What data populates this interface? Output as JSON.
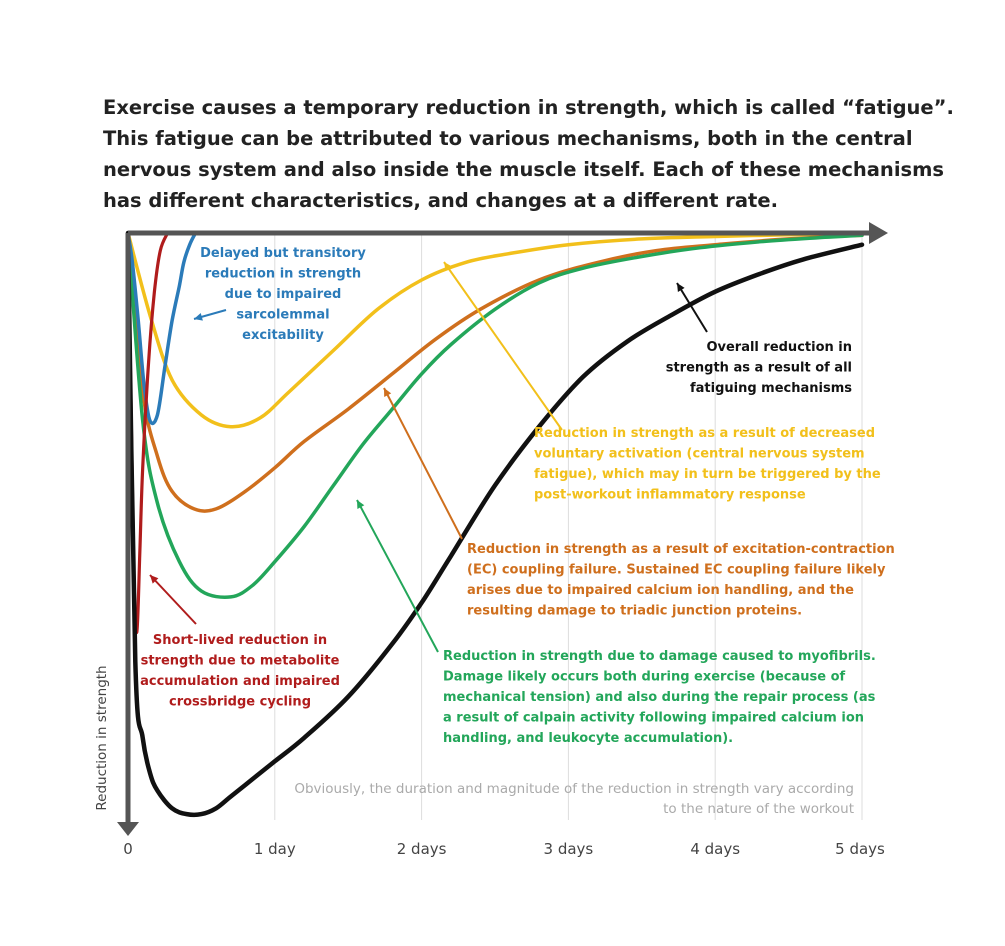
{
  "heading": {
    "lines": [
      "Exercise causes a temporary reduction in strength, which is called “fatigue”.",
      "This fatigue can be attributed to various mechanisms, both in the central",
      "nervous system and also inside the muscle itself. Each of these mechanisms",
      "has different characteristics, and changes at a different rate."
    ]
  },
  "chart_data": {
    "type": "line",
    "title": "",
    "xlabel": "",
    "ylabel": "Reduction in strength",
    "x_unit": "days",
    "xlim": [
      0,
      5
    ],
    "ylim": [
      0,
      1
    ],
    "y_axis_inverted": true,
    "grid": "vertical",
    "tick_labels": [
      "0",
      "1 day",
      "2 days",
      "3 days",
      "4 days",
      "5 days"
    ],
    "series": [
      {
        "key": "metabolite",
        "color": "#b01c1c",
        "x": [
          0,
          0.02,
          0.04,
          0.06,
          0.08,
          0.1,
          0.14,
          0.18,
          0.22,
          0.27
        ],
        "y": [
          0,
          0.28,
          0.58,
          0.68,
          0.55,
          0.4,
          0.22,
          0.1,
          0.03,
          0
        ]
      },
      {
        "key": "sarcolemmal",
        "color": "#2b7bb9",
        "x": [
          0,
          0.03,
          0.07,
          0.11,
          0.15,
          0.2,
          0.25,
          0.3,
          0.35,
          0.38,
          0.42,
          0.46
        ],
        "y": [
          0,
          0.05,
          0.15,
          0.26,
          0.32,
          0.31,
          0.23,
          0.15,
          0.09,
          0.05,
          0.02,
          0
        ]
      },
      {
        "key": "central",
        "color": "#f2c01b",
        "x": [
          0,
          0.15,
          0.3,
          0.5,
          0.7,
          0.9,
          1.1,
          1.4,
          1.7,
          2.0,
          2.3,
          2.6,
          3.0,
          3.5,
          4.0,
          4.5,
          5.0
        ],
        "y": [
          0,
          0.14,
          0.25,
          0.31,
          0.33,
          0.315,
          0.27,
          0.2,
          0.13,
          0.08,
          0.05,
          0.035,
          0.02,
          0.01,
          0.006,
          0.003,
          0.001
        ]
      },
      {
        "key": "ec-coupling",
        "color": "#cf6f1d",
        "x": [
          0,
          0.1,
          0.2,
          0.3,
          0.45,
          0.6,
          0.8,
          1.0,
          1.2,
          1.5,
          1.8,
          2.1,
          2.4,
          2.8,
          3.2,
          3.6,
          4.0,
          4.5,
          5.0
        ],
        "y": [
          0,
          0.27,
          0.38,
          0.44,
          0.47,
          0.47,
          0.44,
          0.4,
          0.355,
          0.3,
          0.24,
          0.18,
          0.13,
          0.08,
          0.05,
          0.03,
          0.02,
          0.01,
          0.004
        ]
      },
      {
        "key": "myofibril",
        "color": "#23a65a",
        "x": [
          0,
          0.1,
          0.2,
          0.35,
          0.5,
          0.7,
          0.85,
          1.0,
          1.2,
          1.4,
          1.6,
          1.8,
          2.0,
          2.2,
          2.5,
          2.8,
          3.1,
          3.5,
          3.9,
          4.3,
          4.7,
          5.0
        ],
        "y": [
          0,
          0.32,
          0.46,
          0.56,
          0.61,
          0.62,
          0.6,
          0.56,
          0.5,
          0.43,
          0.36,
          0.3,
          0.24,
          0.19,
          0.13,
          0.085,
          0.06,
          0.04,
          0.025,
          0.015,
          0.008,
          0.004
        ]
      },
      {
        "key": "overall",
        "color": "#111111",
        "x": [
          0,
          0.05,
          0.1,
          0.15,
          0.2,
          0.3,
          0.4,
          0.5,
          0.6,
          0.7,
          0.85,
          1.0,
          1.2,
          1.5,
          1.8,
          2.0,
          2.2,
          2.5,
          2.8,
          3.1,
          3.4,
          3.7,
          4.0,
          4.3,
          4.6,
          5.0
        ],
        "y": [
          0,
          0.73,
          0.86,
          0.92,
          0.95,
          0.98,
          0.99,
          0.99,
          0.98,
          0.96,
          0.93,
          0.9,
          0.86,
          0.79,
          0.7,
          0.63,
          0.55,
          0.43,
          0.33,
          0.245,
          0.185,
          0.14,
          0.1,
          0.07,
          0.045,
          0.02
        ]
      }
    ],
    "annotations": [
      {
        "key": "sarcolemmal",
        "color": "#2b7bb9",
        "anchor": "middle",
        "lines": [
          "Delayed but transitory",
          "reduction in strength",
          "due to impaired",
          "sarcolemmal",
          "excitability"
        ]
      },
      {
        "key": "overall",
        "color": "#111111",
        "anchor": "end",
        "lines": [
          "Overall reduction in",
          "strength as a result of all",
          "fatiguing mechanisms"
        ]
      },
      {
        "key": "central",
        "color": "#f2c01b",
        "anchor": "start",
        "lines": [
          "Reduction in strength as a result of decreased",
          "voluntary activation (central nervous system",
          "fatigue), which may in turn be triggered by the",
          "post-workout inflammatory response"
        ]
      },
      {
        "key": "ec-coupling",
        "color": "#cf6f1d",
        "anchor": "start",
        "lines": [
          "Reduction in strength as a result of excitation-contraction",
          "(EC) coupling failure. Sustained EC coupling failure likely",
          "arises due to impaired calcium ion handling, and the",
          "resulting damage to triadic junction proteins."
        ]
      },
      {
        "key": "metabolite",
        "color": "#b01c1c",
        "anchor": "middle",
        "lines": [
          "Short-lived reduction in",
          "strength due to metabolite",
          "accumulation and impaired",
          "crossbridge cycling"
        ]
      },
      {
        "key": "myofibril",
        "color": "#23a65a",
        "anchor": "start",
        "lines": [
          "Reduction in strength due to damage caused to myofibrils.",
          "Damage likely occurs both during exercise (because of",
          "mechanical tension) and also during the repair process (as",
          "a result of calpain activity following impaired calcium ion",
          "handling, and leukocyte accumulation)."
        ]
      }
    ],
    "footnote": [
      "Obviously, the duration and magnitude of the reduction in strength vary according",
      "to the nature of the workout"
    ]
  }
}
